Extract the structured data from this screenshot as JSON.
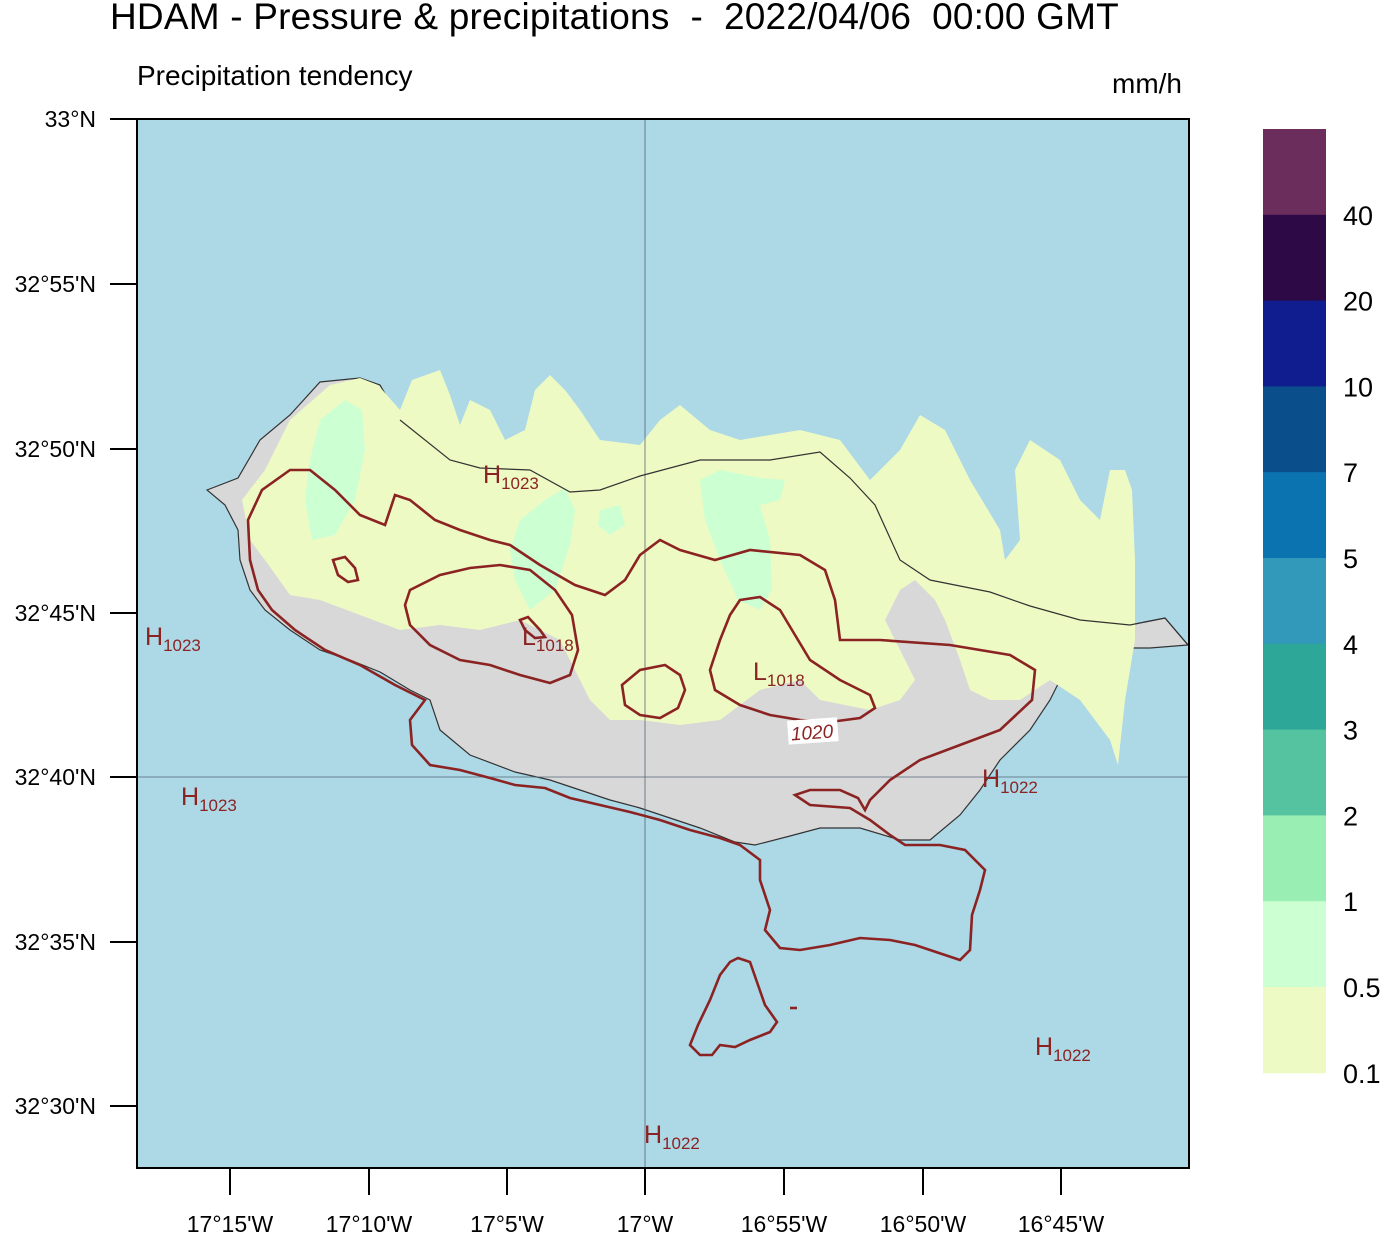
{
  "title": "HDAM - Pressure & precipitations  -  2022/04/06  00:00 GMT",
  "subtitle": "Precipitation tendency",
  "units": "mm/h",
  "lat_labels": [
    "33°N",
    "32°55'N",
    "32°50'N",
    "32°45'N",
    "32°40'N",
    "32°35'N",
    "32°30'N"
  ],
  "lon_labels": [
    "17°15'W",
    "17°10'W",
    "17°5'W",
    "17°W",
    "16°55'W",
    "16°50'W",
    "16°45'W"
  ],
  "colorbar": {
    "labels": [
      "40",
      "20",
      "10",
      "7",
      "5",
      "4",
      "3",
      "2",
      "1",
      "0.5",
      "0.1"
    ],
    "colors": [
      "#6b2d5c",
      "#2d0a45",
      "#0f1d8f",
      "#0a4f8c",
      "#0a73b0",
      "#3399bb",
      "#2da898",
      "#55c2a0",
      "#99eeb4",
      "#ccffd2",
      "#eefac3"
    ]
  },
  "colors": {
    "sea": "#add8e6",
    "land": "#d8d8d8",
    "isobar": "#8b2323",
    "coast": "#333333"
  },
  "pressure_markers": [
    {
      "type": "H",
      "value": "1023"
    },
    {
      "type": "H",
      "value": "1023"
    },
    {
      "type": "H",
      "value": "1023"
    },
    {
      "type": "L",
      "value": "1018"
    },
    {
      "type": "L",
      "value": "1018"
    },
    {
      "type": "H",
      "value": "1022"
    },
    {
      "type": "H",
      "value": "1022"
    },
    {
      "type": "H",
      "value": "1022"
    }
  ],
  "contour_label": "1020"
}
